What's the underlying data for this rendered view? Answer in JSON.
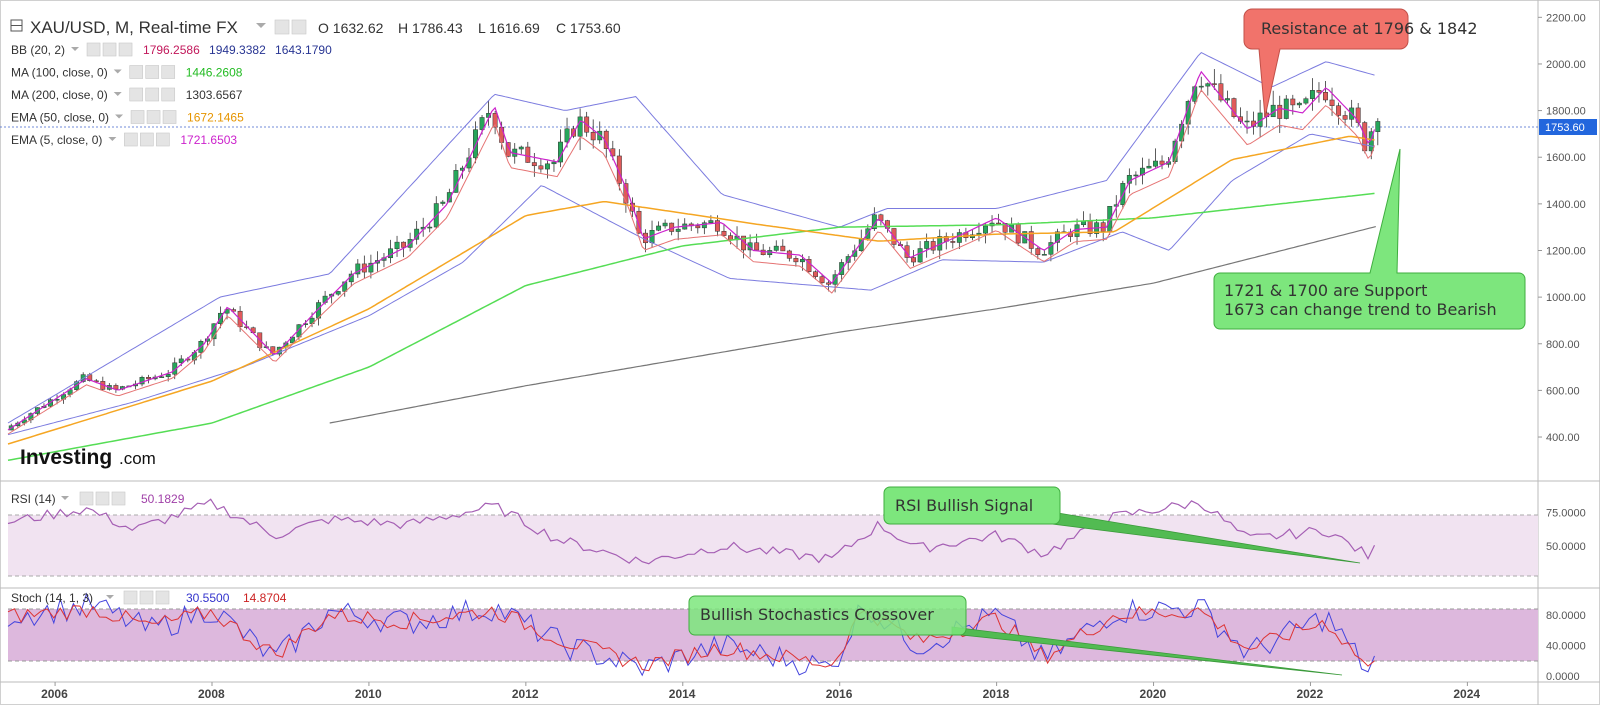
{
  "header": {
    "symbol": "XAU/USD, M, Real-time FX",
    "open": "O 1632.62",
    "high": "H 1786.43",
    "low": "L 1616.69",
    "close": "C 1753.60"
  },
  "indicators": [
    {
      "label": "BB (20, 2)",
      "values": [
        {
          "v": "1796.2586",
          "color": "#c2185b"
        },
        {
          "v": "1949.3382",
          "color": "#283593"
        },
        {
          "v": "1643.1790",
          "color": "#283593"
        }
      ]
    },
    {
      "label": "MA (100, close, 0)",
      "values": [
        {
          "v": "1446.2608",
          "color": "#22bb22"
        }
      ]
    },
    {
      "label": "MA (200, close, 0)",
      "values": [
        {
          "v": "1303.6567",
          "color": "#333333"
        }
      ]
    },
    {
      "label": "EMA (50, close, 0)",
      "values": [
        {
          "v": "1672.1465",
          "color": "#e69500"
        }
      ]
    },
    {
      "label": "EMA (5, close, 0)",
      "values": [
        {
          "v": "1721.6503",
          "color": "#cc22cc"
        }
      ]
    }
  ],
  "price_tag": "1753.60",
  "logo": {
    "main": "Investing",
    "suffix": ".com"
  },
  "rsi": {
    "label": "RSI (14)",
    "value": "50.1829"
  },
  "stoch": {
    "label": "Stoch (14, 1, 3)",
    "k": "30.5500",
    "d": "14.8704"
  },
  "callouts": {
    "resistance": "Resistance at 1796 & 1842",
    "support_line1": "1721 & 1700 are Support",
    "support_line2": "1673 can change trend to Bearish",
    "rsi": "RSI Bullish Signal",
    "stoch": "Bullish Stochastics Crossover"
  },
  "colors": {
    "up": "#26a65b",
    "down": "#e05a5a",
    "bb": "#7b7bdf",
    "ema5": "#cc22cc",
    "ema20": "#e57373",
    "ema50": "#f5a623",
    "ma100": "#55dd55",
    "ma200": "#777777",
    "rsi": "#a55fb4",
    "stoch_k": "#4444dd",
    "stoch_d": "#dd3333",
    "callout_red": "#f1736b",
    "callout_green": "#7de67d"
  },
  "chart_data": {
    "type": "candlestick",
    "title": "XAU/USD, M, Real-time FX",
    "x_ticks": [
      "2006",
      "2008",
      "2010",
      "2012",
      "2014",
      "2016",
      "2018",
      "2020",
      "2022",
      "2024"
    ],
    "price_ticks": [
      "2200.00",
      "2000.00",
      "1800.00",
      "1600.00",
      "1400.00",
      "1200.00",
      "1000.00",
      "800.00",
      "600.00",
      "400.00"
    ],
    "price_range": [
      250,
      2240
    ],
    "rsi_ticks": [
      "75.0000",
      "50.0000"
    ],
    "rsi_range": [
      20,
      95
    ],
    "stoch_ticks": [
      "80.0000",
      "40.0000",
      "0.0000"
    ],
    "stoch_range": [
      -5,
      110
    ],
    "anchors": [
      [
        "2005.4",
        430
      ],
      [
        "2006.4",
        650
      ],
      [
        "2006.8",
        600
      ],
      [
        "2007.5",
        680
      ],
      [
        "2007.9",
        800
      ],
      [
        "2008.2",
        960
      ],
      [
        "2008.8",
        750
      ],
      [
        "2009.3",
        930
      ],
      [
        "2009.8",
        1100
      ],
      [
        "2010.5",
        1220
      ],
      [
        "2011.0",
        1400
      ],
      [
        "2011.6",
        1820
      ],
      [
        "2011.8",
        1620
      ],
      [
        "2012.4",
        1580
      ],
      [
        "2012.7",
        1760
      ],
      [
        "2013.0",
        1680
      ],
      [
        "2013.3",
        1450
      ],
      [
        "2013.5",
        1250
      ],
      [
        "2013.9",
        1300
      ],
      [
        "2014.5",
        1320
      ],
      [
        "2014.9",
        1200
      ],
      [
        "2015.5",
        1180
      ],
      [
        "2015.9",
        1060
      ],
      [
        "2016.5",
        1340
      ],
      [
        "2016.9",
        1170
      ],
      [
        "2017.5",
        1260
      ],
      [
        "2018.0",
        1340
      ],
      [
        "2018.6",
        1200
      ],
      [
        "2019.0",
        1290
      ],
      [
        "2019.4",
        1300
      ],
      [
        "2019.7",
        1500
      ],
      [
        "2020.2",
        1580
      ],
      [
        "2020.6",
        1970
      ],
      [
        "2021.2",
        1720
      ],
      [
        "2021.6",
        1810
      ],
      [
        "2021.9",
        1790
      ],
      [
        "2022.2",
        1900
      ],
      [
        "2022.6",
        1760
      ],
      [
        "2022.75",
        1650
      ],
      [
        "2022.85",
        1754
      ]
    ],
    "bb_upper": [
      [
        "2005.4",
        460
      ],
      [
        "2008.1",
        1000
      ],
      [
        "2009.5",
        1100
      ],
      [
        "2011.6",
        1870
      ],
      [
        "2012.5",
        1800
      ],
      [
        "2013.4",
        1860
      ],
      [
        "2014.5",
        1440
      ],
      [
        "2016.0",
        1300
      ],
      [
        "2016.6",
        1380
      ],
      [
        "2018.0",
        1380
      ],
      [
        "2019.4",
        1500
      ],
      [
        "2020.6",
        2050
      ],
      [
        "2021.5",
        1900
      ],
      [
        "2022.2",
        2010
      ],
      [
        "2022.85",
        1949
      ]
    ],
    "bb_lower": [
      [
        "2005.4",
        410
      ],
      [
        "2007.0",
        550
      ],
      [
        "2008.4",
        700
      ],
      [
        "2010.0",
        920
      ],
      [
        "2011.2",
        1150
      ],
      [
        "2012.2",
        1480
      ],
      [
        "2013.5",
        1250
      ],
      [
        "2014.6",
        1080
      ],
      [
        "2016.4",
        1030
      ],
      [
        "2017.3",
        1160
      ],
      [
        "2018.6",
        1150
      ],
      [
        "2019.6",
        1280
      ],
      [
        "2020.2",
        1200
      ],
      [
        "2021.0",
        1500
      ],
      [
        "2022.0",
        1700
      ],
      [
        "2022.85",
        1643
      ]
    ],
    "ma100": [
      [
        "2005.4",
        300
      ],
      [
        "2008.0",
        460
      ],
      [
        "2010.0",
        700
      ],
      [
        "2012.0",
        1050
      ],
      [
        "2014.0",
        1220
      ],
      [
        "2016.0",
        1300
      ],
      [
        "2018.0",
        1310
      ],
      [
        "2020.0",
        1340
      ],
      [
        "2022.85",
        1446
      ]
    ],
    "ma200": [
      [
        "2009.5",
        460
      ],
      [
        "2012.0",
        620
      ],
      [
        "2016.0",
        850
      ],
      [
        "2018.0",
        950
      ],
      [
        "2020.0",
        1060
      ],
      [
        "2022.85",
        1304
      ]
    ],
    "ema50": [
      [
        "2005.4",
        370
      ],
      [
        "2008.0",
        640
      ],
      [
        "2010.0",
        950
      ],
      [
        "2012.0",
        1350
      ],
      [
        "2013.0",
        1410
      ],
      [
        "2015.0",
        1310
      ],
      [
        "2016.5",
        1240
      ],
      [
        "2018.0",
        1270
      ],
      [
        "2019.5",
        1280
      ],
      [
        "2021.0",
        1590
      ],
      [
        "2022.5",
        1690
      ],
      [
        "2022.85",
        1672
      ]
    ],
    "rsi": [
      [
        "2005.4",
        68
      ],
      [
        "2006.4",
        78
      ],
      [
        "2007.0",
        62
      ],
      [
        "2008.0",
        82
      ],
      [
        "2008.8",
        58
      ],
      [
        "2009.5",
        70
      ],
      [
        "2010.5",
        66
      ],
      [
        "2011.6",
        80
      ],
      [
        "2012.4",
        55
      ],
      [
        "2013.5",
        38
      ],
      [
        "2014.5",
        50
      ],
      [
        "2015.9",
        40
      ],
      [
        "2016.5",
        66
      ],
      [
        "2017.0",
        48
      ],
      [
        "2018.0",
        58
      ],
      [
        "2018.6",
        44
      ],
      [
        "2019.5",
        72
      ],
      [
        "2020.6",
        83
      ],
      [
        "2021.2",
        55
      ],
      [
        "2022.2",
        62
      ],
      [
        "2022.75",
        42
      ],
      [
        "2022.85",
        50
      ]
    ],
    "stoch_k": [
      [
        "2005.4",
        80
      ],
      [
        "2006.5",
        92
      ],
      [
        "2007.2",
        60
      ],
      [
        "2008.0",
        88
      ],
      [
        "2008.8",
        22
      ],
      [
        "2009.5",
        85
      ],
      [
        "2010.5",
        70
      ],
      [
        "2011.6",
        90
      ],
      [
        "2012.5",
        40
      ],
      [
        "2013.5",
        10
      ],
      [
        "2014.5",
        40
      ],
      [
        "2015.9",
        10
      ],
      [
        "2016.3",
        95
      ],
      [
        "2017.0",
        40
      ],
      [
        "2018.0",
        80
      ],
      [
        "2018.6",
        20
      ],
      [
        "2019.5",
        85
      ],
      [
        "2020.6",
        90
      ],
      [
        "2021.2",
        30
      ],
      [
        "2022.2",
        78
      ],
      [
        "2022.75",
        5
      ],
      [
        "2022.85",
        30
      ]
    ],
    "stoch_d": [
      [
        "2005.4",
        78
      ],
      [
        "2006.5",
        88
      ],
      [
        "2007.2",
        65
      ],
      [
        "2008.0",
        84
      ],
      [
        "2008.8",
        28
      ],
      [
        "2009.5",
        80
      ],
      [
        "2010.5",
        72
      ],
      [
        "2011.6",
        86
      ],
      [
        "2012.5",
        45
      ],
      [
        "2013.5",
        15
      ],
      [
        "2014.5",
        38
      ],
      [
        "2015.9",
        15
      ],
      [
        "2016.3",
        88
      ],
      [
        "2017.0",
        45
      ],
      [
        "2018.0",
        76
      ],
      [
        "2018.6",
        25
      ],
      [
        "2019.5",
        80
      ],
      [
        "2020.6",
        86
      ],
      [
        "2021.2",
        35
      ],
      [
        "2022.2",
        72
      ],
      [
        "2022.75",
        10
      ],
      [
        "2022.85",
        15
      ]
    ]
  }
}
